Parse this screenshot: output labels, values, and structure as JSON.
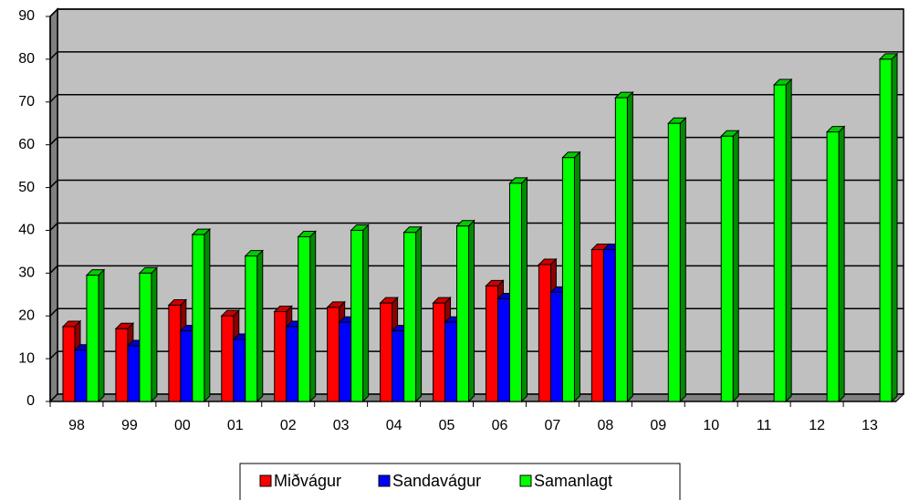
{
  "chart_data": {
    "type": "bar3d",
    "categories": [
      "98",
      "99",
      "00",
      "01",
      "02",
      "03",
      "04",
      "05",
      "06",
      "07",
      "08",
      "09",
      "10",
      "11",
      "12",
      "13"
    ],
    "series": [
      {
        "name": "Miðvágur",
        "color": "#ff0000",
        "values": [
          17.5,
          17,
          22.5,
          20,
          21,
          22,
          23,
          23,
          27,
          32,
          35.5,
          null,
          null,
          null,
          null,
          null
        ]
      },
      {
        "name": "Sandavágur",
        "color": "#0000ff",
        "values": [
          12,
          13,
          16.5,
          14.5,
          17.5,
          18.5,
          16.5,
          18.5,
          24,
          25.5,
          35.5,
          null,
          null,
          null,
          null,
          null
        ]
      },
      {
        "name": "Samanlagt",
        "color": "#00ff00",
        "values": [
          29.5,
          30,
          39,
          34,
          38.5,
          40,
          39.5,
          41,
          51,
          57,
          71,
          65,
          62,
          74,
          63,
          80
        ]
      }
    ],
    "ylim": [
      0,
      90
    ],
    "yticks": [
      0,
      10,
      20,
      30,
      40,
      50,
      60,
      70,
      80,
      90
    ],
    "grid": true,
    "legend": "bottom"
  }
}
